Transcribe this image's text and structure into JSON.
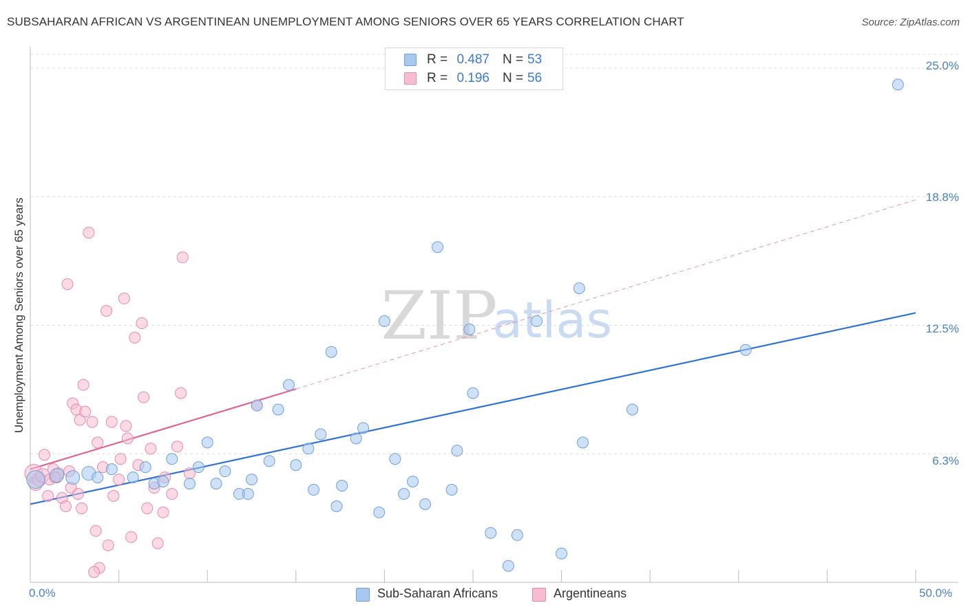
{
  "title": "SUBSAHARAN AFRICAN VS ARGENTINEAN UNEMPLOYMENT AMONG SENIORS OVER 65 YEARS CORRELATION CHART",
  "source": "Source: ZipAtlas.com",
  "watermark": {
    "zip": "ZIP",
    "atlas": "atlas"
  },
  "legend_top": {
    "rows": [
      {
        "r_label": "R =",
        "r_value": "0.487",
        "n_label": "N =",
        "n_value": "53",
        "color": "#a8c8f0",
        "border": "#6f9fd8"
      },
      {
        "r_label": "R =",
        "r_value": "0.196",
        "n_label": "N =",
        "n_value": "56",
        "color": "#f7bcd0",
        "border": "#e58aab"
      }
    ]
  },
  "legend_bottom": {
    "items": [
      {
        "label": "Sub-Saharan Africans",
        "color": "#a8c8f0",
        "border": "#6f9fd8"
      },
      {
        "label": "Argentineans",
        "color": "#f7bcd0",
        "border": "#e58aab"
      }
    ]
  },
  "colors": {
    "blue_fill": "#a8c8f0",
    "blue_stroke": "#6f9fd8",
    "blue_line": "#2f72d6",
    "pink_fill": "#f7bcd0",
    "pink_stroke": "#e58aab",
    "pink_line": "#e06491",
    "grid": "#dddddd",
    "tick_text": "#4a80c8"
  },
  "chart_data": {
    "type": "scatter",
    "title": "SUBSAHARAN AFRICAN VS ARGENTINEAN UNEMPLOYMENT AMONG SENIORS OVER 65 YEARS CORRELATION CHART",
    "xlabel": "",
    "ylabel": "Unemployment Among Seniors over 65 years",
    "xlim": [
      0,
      50
    ],
    "ylim": [
      0,
      25.0
    ],
    "x_tick_labels": [
      {
        "value": 0,
        "label": "0.0%"
      },
      {
        "value": 50,
        "label": "50.0%"
      }
    ],
    "y_tick_labels": [
      {
        "value": 25.0,
        "label": "25.0%"
      },
      {
        "value": 18.75,
        "label": "18.8%"
      },
      {
        "value": 12.5,
        "label": "12.5%"
      },
      {
        "value": 6.25,
        "label": "6.3%"
      }
    ],
    "series": [
      {
        "name": "Sub-Saharan Africans",
        "r": 0.487,
        "n": 53,
        "trend": {
          "x0": 0,
          "y0": 3.8,
          "x1": 50,
          "y1": 13.1
        },
        "points": [
          [
            0.3,
            5.0,
            3
          ],
          [
            1.5,
            5.2,
            2
          ],
          [
            2.4,
            5.1,
            2
          ],
          [
            3.3,
            5.3,
            2
          ],
          [
            3.8,
            5.1,
            1
          ],
          [
            4.6,
            5.5,
            1
          ],
          [
            5.8,
            5.1,
            1
          ],
          [
            6.5,
            5.6,
            1
          ],
          [
            7.0,
            4.8,
            1
          ],
          [
            7.5,
            4.9,
            1
          ],
          [
            8.0,
            6.0,
            1
          ],
          [
            9.0,
            4.8,
            1
          ],
          [
            9.5,
            5.6,
            1
          ],
          [
            10.0,
            6.8,
            1
          ],
          [
            10.5,
            4.8,
            1
          ],
          [
            11.0,
            5.4,
            1
          ],
          [
            11.8,
            4.3,
            1
          ],
          [
            12.3,
            4.3,
            1
          ],
          [
            12.8,
            8.6,
            1
          ],
          [
            13.5,
            5.9,
            1
          ],
          [
            14.0,
            8.4,
            1
          ],
          [
            14.6,
            9.6,
            1
          ],
          [
            15.0,
            5.7,
            1
          ],
          [
            15.7,
            6.5,
            1
          ],
          [
            16.4,
            7.2,
            1
          ],
          [
            17.0,
            11.2,
            1
          ],
          [
            17.3,
            3.7,
            1
          ],
          [
            17.6,
            4.7,
            1
          ],
          [
            18.4,
            7.0,
            1
          ],
          [
            18.8,
            7.5,
            1
          ],
          [
            19.7,
            3.4,
            1
          ],
          [
            20.0,
            12.7,
            1
          ],
          [
            20.6,
            6.0,
            1
          ],
          [
            21.1,
            4.3,
            1
          ],
          [
            21.6,
            4.9,
            1
          ],
          [
            22.3,
            3.8,
            1
          ],
          [
            23.0,
            16.3,
            1
          ],
          [
            23.8,
            4.5,
            1
          ],
          [
            24.1,
            6.4,
            1
          ],
          [
            24.8,
            12.3,
            1
          ],
          [
            25.0,
            9.2,
            1
          ],
          [
            26.0,
            2.4,
            1
          ],
          [
            27.0,
            0.8,
            1
          ],
          [
            27.5,
            2.3,
            1
          ],
          [
            28.6,
            12.7,
            1
          ],
          [
            30.0,
            1.4,
            1
          ],
          [
            31.2,
            6.8,
            1
          ],
          [
            31.0,
            14.3,
            1
          ],
          [
            34.0,
            8.4,
            1
          ],
          [
            40.4,
            11.3,
            1
          ],
          [
            49.0,
            24.2,
            1
          ],
          [
            16.0,
            4.5,
            1
          ],
          [
            12.5,
            5.0,
            1
          ]
        ]
      },
      {
        "name": "Argentineans",
        "r": 0.196,
        "n": 56,
        "trend": {
          "x0": 0,
          "y0": 5.5,
          "x1": 15,
          "y1": 9.4,
          "dash_x1": 50,
          "dash_y1": 18.6
        },
        "points": [
          [
            0.2,
            5.3,
            3
          ],
          [
            0.3,
            4.8,
            2
          ],
          [
            0.5,
            5.0,
            2
          ],
          [
            0.7,
            5.2,
            2
          ],
          [
            0.8,
            6.2,
            1
          ],
          [
            1.0,
            4.2,
            1
          ],
          [
            1.1,
            5.0,
            1
          ],
          [
            1.3,
            5.5,
            1
          ],
          [
            1.5,
            5.1,
            1
          ],
          [
            1.6,
            5.3,
            1
          ],
          [
            1.8,
            4.1,
            1
          ],
          [
            2.0,
            3.7,
            1
          ],
          [
            2.1,
            14.5,
            1
          ],
          [
            2.3,
            4.6,
            1
          ],
          [
            2.4,
            8.7,
            1
          ],
          [
            2.6,
            8.4,
            1
          ],
          [
            2.8,
            7.9,
            1
          ],
          [
            2.9,
            3.6,
            1
          ],
          [
            3.0,
            9.6,
            1
          ],
          [
            3.1,
            8.3,
            1
          ],
          [
            3.3,
            17.0,
            1
          ],
          [
            3.5,
            7.8,
            1
          ],
          [
            3.7,
            2.5,
            1
          ],
          [
            3.8,
            6.8,
            1
          ],
          [
            3.9,
            0.7,
            1
          ],
          [
            4.1,
            5.6,
            1
          ],
          [
            4.3,
            13.2,
            1
          ],
          [
            4.4,
            1.8,
            1
          ],
          [
            4.6,
            7.8,
            1
          ],
          [
            4.7,
            4.2,
            1
          ],
          [
            5.0,
            5.0,
            1
          ],
          [
            5.1,
            6.0,
            1
          ],
          [
            5.3,
            13.8,
            1
          ],
          [
            5.4,
            7.6,
            1
          ],
          [
            5.5,
            7.0,
            1
          ],
          [
            5.7,
            2.2,
            1
          ],
          [
            5.9,
            11.9,
            1
          ],
          [
            6.1,
            5.7,
            1
          ],
          [
            6.3,
            12.6,
            1
          ],
          [
            6.4,
            9.0,
            1
          ],
          [
            6.6,
            3.6,
            1
          ],
          [
            6.8,
            6.5,
            1
          ],
          [
            7.0,
            4.6,
            1
          ],
          [
            7.2,
            1.9,
            1
          ],
          [
            7.5,
            3.4,
            1
          ],
          [
            7.6,
            5.1,
            1
          ],
          [
            8.0,
            4.3,
            1
          ],
          [
            8.3,
            6.6,
            1
          ],
          [
            8.5,
            9.2,
            1
          ],
          [
            8.6,
            15.8,
            1
          ],
          [
            9.0,
            5.3,
            1
          ],
          [
            12.8,
            8.6,
            1
          ],
          [
            3.6,
            0.5,
            1
          ],
          [
            1.4,
            5.1,
            1
          ],
          [
            2.2,
            5.4,
            1
          ],
          [
            2.7,
            4.3,
            1
          ]
        ]
      }
    ]
  }
}
